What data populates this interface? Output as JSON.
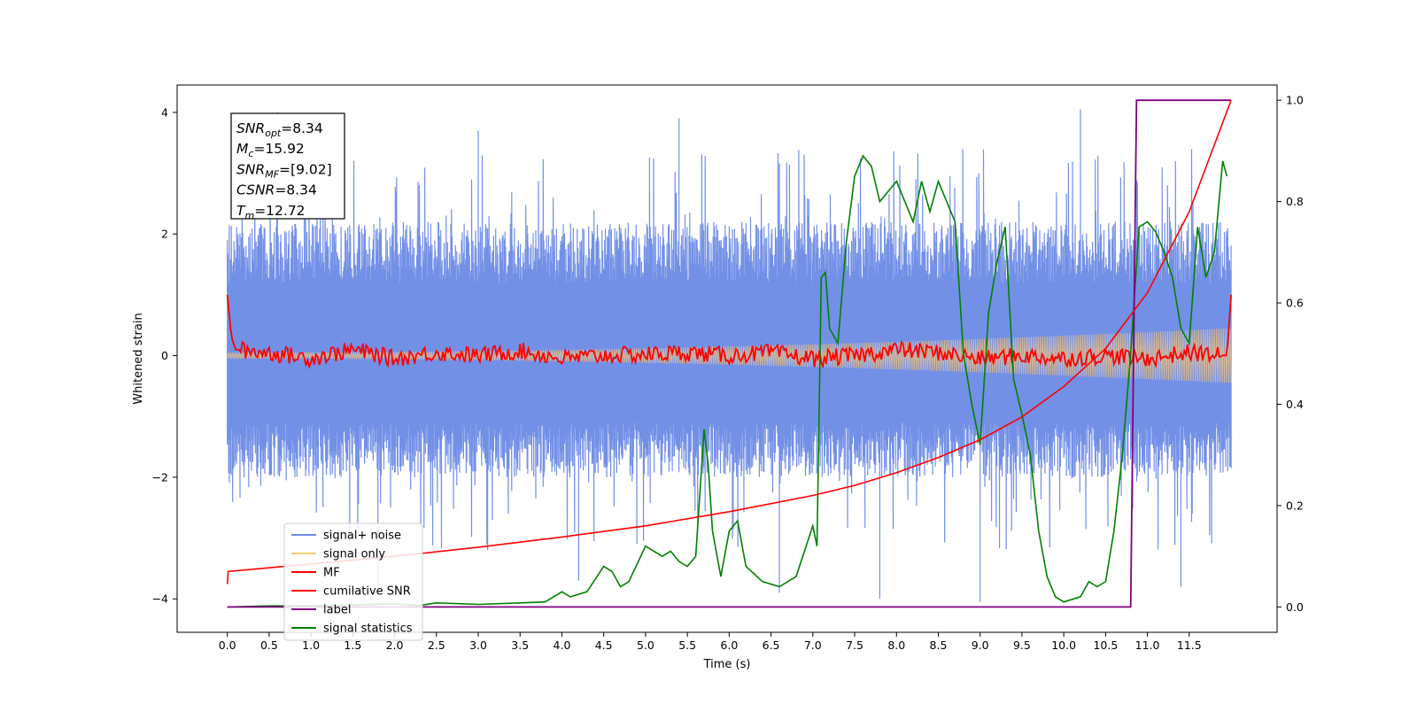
{
  "chart_data": {
    "type": "line",
    "xlabel": "Time (s)",
    "ylabel": "Whitened strain",
    "xlim": [
      -0.6,
      12.55
    ],
    "ylim": [
      -4.55,
      4.45
    ],
    "y2lim": [
      -0.05,
      1.03
    ],
    "x_ticks": [
      "0.0",
      "0.5",
      "1.0",
      "1.5",
      "2.0",
      "2.5",
      "3.0",
      "3.5",
      "4.0",
      "4.5",
      "5.0",
      "5.5",
      "6.0",
      "6.5",
      "7.0",
      "7.5",
      "8.0",
      "8.5",
      "9.0",
      "9.5",
      "10.0",
      "10.5",
      "11.0",
      "11.5"
    ],
    "y_ticks": [
      "4",
      "2",
      "0",
      "−2",
      "−4"
    ],
    "y2_ticks": [
      "1.0",
      "0.8",
      "0.6",
      "0.4",
      "0.2",
      "0.0"
    ],
    "legend": {
      "position": "lower-left",
      "entries": [
        {
          "label": "signal+ noise",
          "color": "#6b8ae6"
        },
        {
          "label": "signal only",
          "color": "#ffc773"
        },
        {
          "label": "MF",
          "color": "#ff0000"
        },
        {
          "label": "cumilative SNR",
          "color": "#ff0000"
        },
        {
          "label": "label",
          "color": "#800080"
        },
        {
          "label": "signal statistics",
          "color": "#008000"
        }
      ]
    },
    "info_box": [
      {
        "base": "SNR",
        "sub": "opt",
        "value": "=8.34"
      },
      {
        "base": "M",
        "sub": "c",
        "value": "=15.92"
      },
      {
        "base": "SNR",
        "sub": "MF",
        "value": "=[9.02]"
      },
      {
        "base": "CSNR",
        "sub": "",
        "value": "=8.34"
      },
      {
        "base": "T",
        "sub": "m",
        "value": "=12.72"
      }
    ],
    "series": [
      {
        "name": "signal+ noise",
        "axis": "left",
        "color": "#6b8ae6",
        "kind": "noise",
        "x_range": [
          0.0,
          12.0
        ],
        "typical_range": [
          -2.0,
          2.2
        ],
        "peak_values": [
          4.0,
          -3.8,
          3.7,
          -3.7,
          3.9,
          -3.9,
          -4.0,
          -4.05,
          4.05,
          -3.8
        ]
      },
      {
        "name": "signal only",
        "axis": "left",
        "color": "#ffc773",
        "kind": "chirp",
        "x_range": [
          0.0,
          12.0
        ],
        "amplitude_start": 0.05,
        "amplitude_end": 0.45
      },
      {
        "name": "MF",
        "axis": "left",
        "color": "#ff0000",
        "x": [
          0.0,
          0.05,
          0.1,
          0.5,
          1.0,
          1.5,
          2.0,
          2.5,
          3.0,
          3.5,
          4.0,
          4.5,
          5.0,
          5.5,
          6.0,
          6.5,
          7.0,
          7.5,
          8.0,
          8.5,
          9.0,
          9.5,
          10.0,
          10.5,
          11.0,
          11.5,
          11.95,
          12.0
        ],
        "y": [
          1.0,
          0.3,
          0.1,
          0.05,
          -0.05,
          0.1,
          -0.05,
          0.05,
          0.0,
          0.08,
          -0.05,
          0.0,
          0.02,
          0.05,
          0.0,
          0.05,
          -0.05,
          0.0,
          0.1,
          0.05,
          -0.05,
          0.0,
          -0.05,
          0.0,
          -0.05,
          0.05,
          0.0,
          1.0
        ]
      },
      {
        "name": "cumilative SNR",
        "axis": "right",
        "color": "#ff0000",
        "x": [
          0.0,
          0.01,
          1.0,
          2.0,
          3.0,
          4.0,
          5.0,
          6.0,
          7.0,
          7.5,
          8.0,
          8.5,
          9.0,
          9.5,
          10.0,
          10.5,
          11.0,
          11.5,
          12.0
        ],
        "y": [
          0.045,
          0.07,
          0.085,
          0.1,
          0.118,
          0.138,
          0.16,
          0.188,
          0.22,
          0.24,
          0.265,
          0.295,
          0.33,
          0.375,
          0.435,
          0.51,
          0.62,
          0.78,
          1.0
        ]
      },
      {
        "name": "label",
        "axis": "right",
        "color": "#800080",
        "x": [
          0.0,
          10.8,
          10.87,
          12.0
        ],
        "y": [
          0.0,
          0.0,
          1.0,
          1.0
        ]
      },
      {
        "name": "signal statistics",
        "axis": "right",
        "color": "#008000",
        "x": [
          0.0,
          0.5,
          1.0,
          1.5,
          2.0,
          2.3,
          2.5,
          3.0,
          3.5,
          3.8,
          4.0,
          4.1,
          4.3,
          4.5,
          4.6,
          4.7,
          4.8,
          5.0,
          5.2,
          5.3,
          5.4,
          5.5,
          5.6,
          5.7,
          5.75,
          5.8,
          5.9,
          6.0,
          6.1,
          6.2,
          6.4,
          6.6,
          6.8,
          7.0,
          7.05,
          7.1,
          7.15,
          7.2,
          7.3,
          7.4,
          7.5,
          7.6,
          7.7,
          7.8,
          7.9,
          8.0,
          8.1,
          8.2,
          8.3,
          8.4,
          8.5,
          8.6,
          8.7,
          8.8,
          8.9,
          9.0,
          9.1,
          9.2,
          9.3,
          9.4,
          9.5,
          9.6,
          9.7,
          9.8,
          9.9,
          10.0,
          10.2,
          10.3,
          10.4,
          10.5,
          10.6,
          10.7,
          10.8,
          10.9,
          11.0,
          11.1,
          11.2,
          11.3,
          11.4,
          11.5,
          11.6,
          11.7,
          11.8,
          11.9,
          11.95
        ],
        "y": [
          0.0,
          0.002,
          0.002,
          0.004,
          0.006,
          0.003,
          0.008,
          0.005,
          0.008,
          0.01,
          0.03,
          0.02,
          0.03,
          0.08,
          0.07,
          0.04,
          0.05,
          0.12,
          0.1,
          0.11,
          0.09,
          0.08,
          0.1,
          0.35,
          0.28,
          0.15,
          0.06,
          0.15,
          0.17,
          0.08,
          0.05,
          0.04,
          0.06,
          0.16,
          0.12,
          0.65,
          0.66,
          0.55,
          0.52,
          0.72,
          0.85,
          0.89,
          0.87,
          0.8,
          0.82,
          0.84,
          0.8,
          0.76,
          0.84,
          0.78,
          0.84,
          0.8,
          0.76,
          0.5,
          0.4,
          0.32,
          0.58,
          0.68,
          0.75,
          0.45,
          0.38,
          0.3,
          0.15,
          0.06,
          0.02,
          0.01,
          0.02,
          0.05,
          0.04,
          0.05,
          0.15,
          0.3,
          0.5,
          0.75,
          0.76,
          0.74,
          0.7,
          0.65,
          0.55,
          0.52,
          0.75,
          0.65,
          0.7,
          0.88,
          0.85
        ]
      }
    ]
  }
}
